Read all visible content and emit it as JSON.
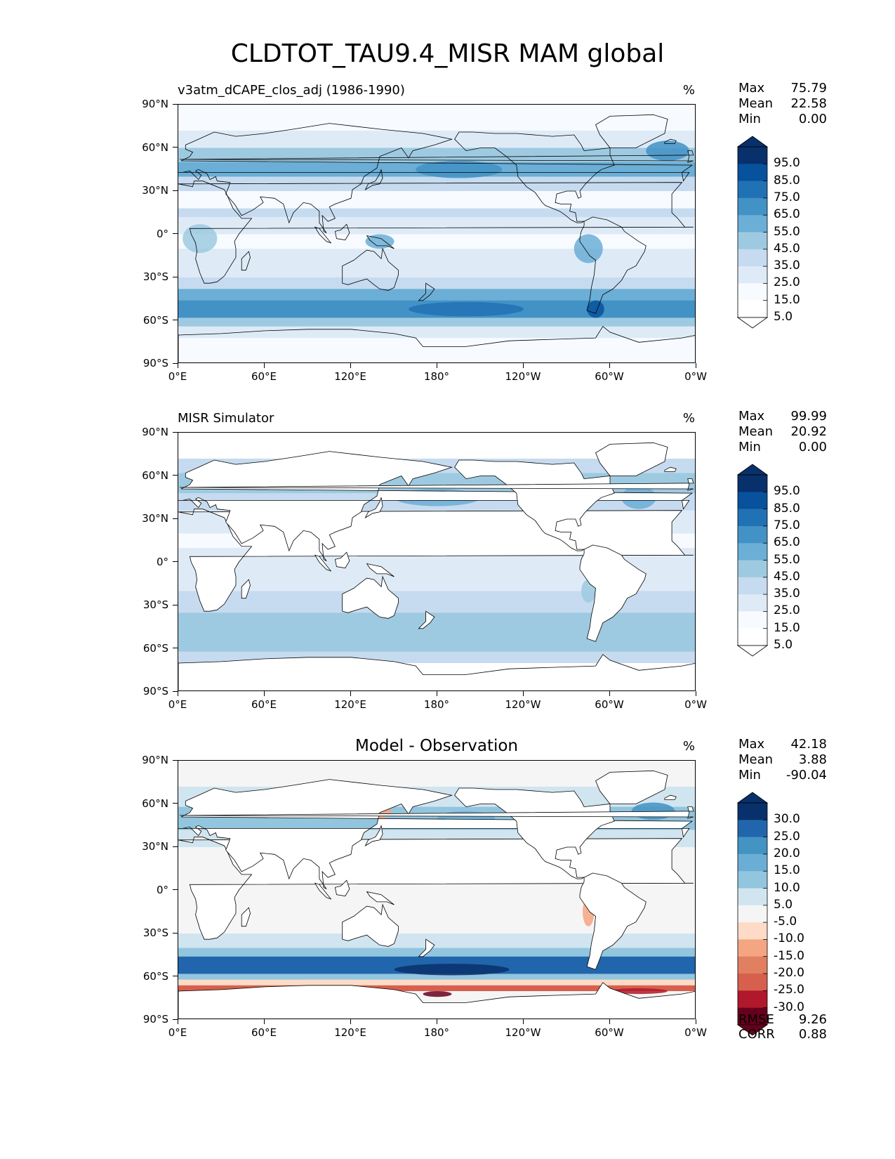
{
  "title": "CLDTOT_TAU9.4_MISR MAM global",
  "axes": {
    "lat_labels": [
      "90°N",
      "60°N",
      "30°N",
      "0°",
      "30°S",
      "60°S",
      "90°S"
    ],
    "lon_labels": [
      "0°E",
      "60°E",
      "120°E",
      "180°",
      "120°W",
      "60°W",
      "0°W"
    ]
  },
  "panels": [
    {
      "id": "model",
      "subtitle": "v3atm_dCAPE_clos_adj (1986-1990)",
      "unit": "%",
      "stats": [
        {
          "label": "Max",
          "value": "75.79"
        },
        {
          "label": "Mean",
          "value": "22.58"
        },
        {
          "label": "Min",
          "value": "0.00"
        }
      ],
      "colorbar": {
        "labels": [
          "95.0",
          "85.0",
          "75.0",
          "65.0",
          "55.0",
          "45.0",
          "35.0",
          "25.0",
          "15.0",
          "5.0"
        ],
        "colors": [
          "#08306b",
          "#08519c",
          "#2171b5",
          "#4292c6",
          "#6baed6",
          "#9ecae1",
          "#c6dbef",
          "#deebf7",
          "#f7fbff",
          "#ffffff"
        ],
        "top_color": "#08306b",
        "bottom_color": "#ffffff"
      }
    },
    {
      "id": "obs",
      "subtitle": "MISR Simulator",
      "unit": "%",
      "stats": [
        {
          "label": "Max",
          "value": "99.99"
        },
        {
          "label": "Mean",
          "value": "20.92"
        },
        {
          "label": "Min",
          "value": "0.00"
        }
      ],
      "colorbar": {
        "labels": [
          "95.0",
          "85.0",
          "75.0",
          "65.0",
          "55.0",
          "45.0",
          "35.0",
          "25.0",
          "15.0",
          "5.0"
        ],
        "colors": [
          "#08306b",
          "#08519c",
          "#2171b5",
          "#4292c6",
          "#6baed6",
          "#9ecae1",
          "#c6dbef",
          "#deebf7",
          "#f7fbff",
          "#ffffff"
        ],
        "top_color": "#08306b",
        "bottom_color": "#ffffff"
      }
    },
    {
      "id": "diff",
      "subtitle": "Model - Observation",
      "unit": "%",
      "stats": [
        {
          "label": "Max",
          "value": "42.18"
        },
        {
          "label": "Mean",
          "value": "3.88"
        },
        {
          "label": "Min",
          "value": "-90.04"
        }
      ],
      "extra_stats": [
        {
          "label": "RMSE",
          "value": "9.26"
        },
        {
          "label": "CORR",
          "value": "0.88"
        }
      ],
      "colorbar": {
        "labels": [
          "30.0",
          "25.0",
          "20.0",
          "15.0",
          "10.0",
          "5.0",
          "-5.0",
          "-10.0",
          "-15.0",
          "-20.0",
          "-25.0",
          "-30.0"
        ],
        "colors": [
          "#08306b",
          "#2166ac",
          "#4393c3",
          "#6aaed6",
          "#92c5de",
          "#d1e5f0",
          "#f5f5f5",
          "#fddbc7",
          "#f4a582",
          "#e08060",
          "#d6604d",
          "#b2182b",
          "#67001f"
        ],
        "top_color": "#08306b",
        "bottom_color": "#67001f"
      }
    }
  ]
}
